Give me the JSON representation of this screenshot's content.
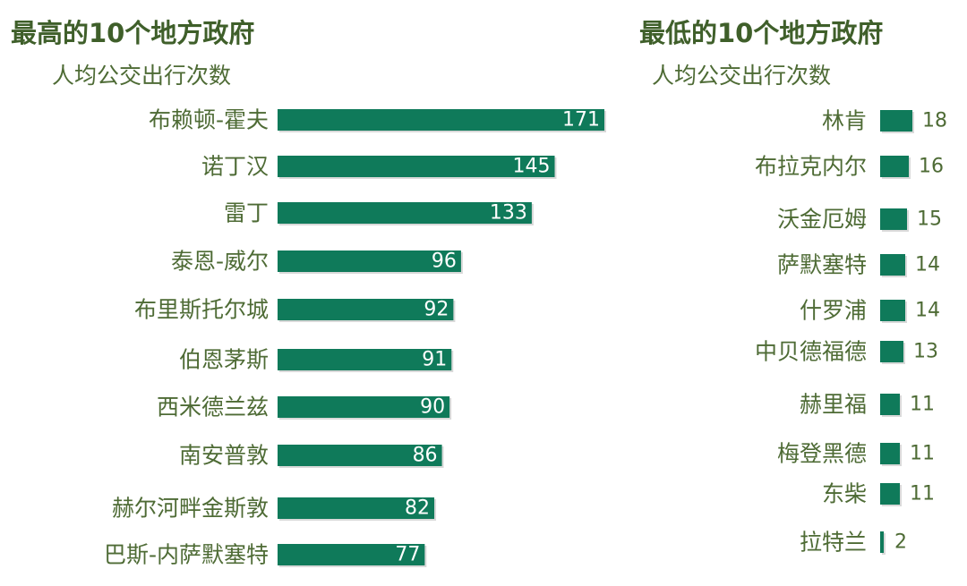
{
  "colors": {
    "bar": "#0f7a5a",
    "title": "#3f5f2a",
    "label": "#4e6b35",
    "bar_shadow": "#d9d9d9"
  },
  "chart_data": [
    {
      "type": "bar",
      "orientation": "horizontal",
      "title": "最高的10个地方政府",
      "subtitle": "人均公交出行次数",
      "categories": [
        "布赖顿-霍夫",
        "诺丁汉",
        "雷丁",
        "泰恩-威尔",
        "布里斯托尔城",
        "伯恩茅斯",
        "西米德兰兹",
        "南安普敦",
        "赫尔河畔金斯敦",
        "巴斯-内萨默塞特"
      ],
      "values": [
        171,
        145,
        133,
        96,
        92,
        91,
        90,
        86,
        82,
        77
      ],
      "value_labels": "inside-end",
      "xlim": [
        0,
        171
      ]
    },
    {
      "type": "bar",
      "orientation": "horizontal",
      "title": "最低的10个地方政府",
      "subtitle": "人均公交出行次数",
      "categories": [
        "林肯",
        "布拉克内尔",
        "沃金厄姆",
        "萨默塞特",
        "什罗浦",
        "中贝德福德",
        "赫里福",
        "梅登黑德",
        "东柴",
        "拉特兰"
      ],
      "values": [
        18,
        16,
        15,
        14,
        14,
        13,
        11,
        11,
        11,
        2
      ],
      "value_labels": "outside-end",
      "xlim": [
        0,
        171
      ]
    }
  ]
}
